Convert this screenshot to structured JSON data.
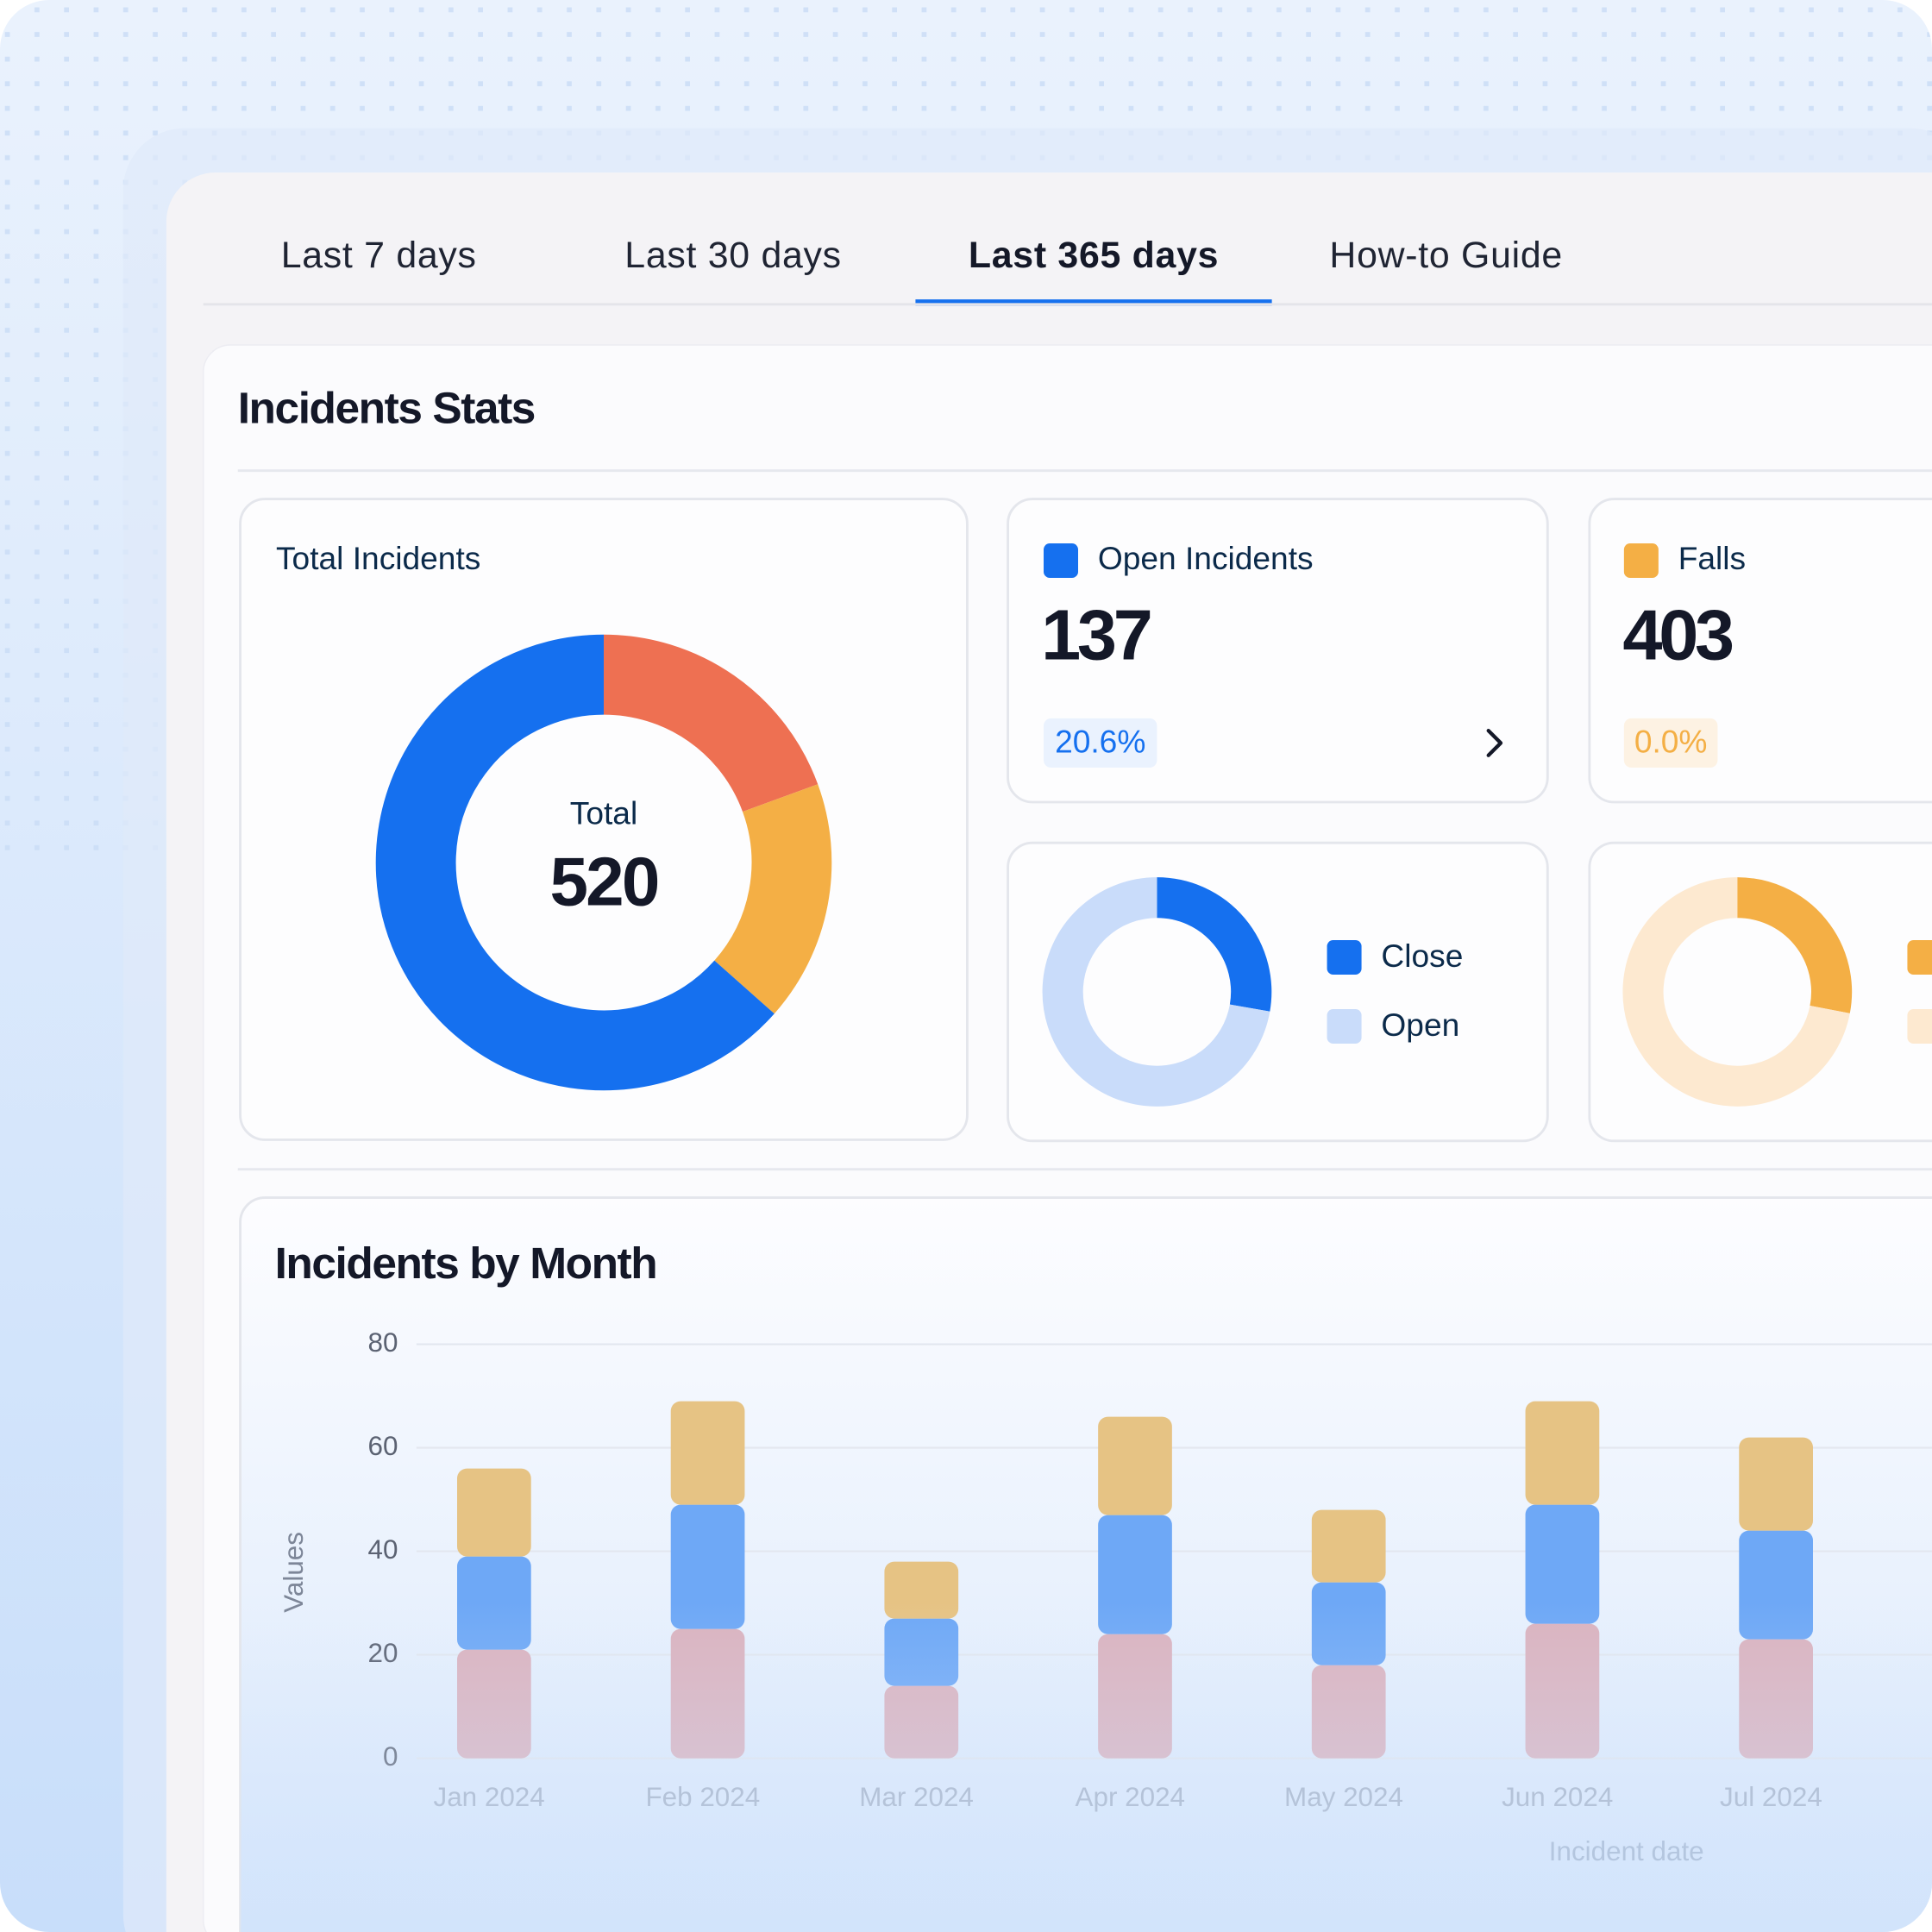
{
  "tabs": {
    "items": [
      "Last 7 days",
      "Last 30 days",
      "Last 365 days",
      "How-to Guide"
    ],
    "active": 2
  },
  "section_title": "Incidents Stats",
  "total_card": {
    "title": "Total Incidents",
    "center_label": "Total",
    "total": 520,
    "chart": {
      "type": "donut",
      "values": [
        101,
        89,
        330
      ],
      "colors": [
        "#ee7052",
        "#f4af45",
        "#1570ef"
      ]
    }
  },
  "open_card": {
    "title": "Open Incidents",
    "value": 137,
    "change": "20.6%",
    "color": "#1570ef",
    "chart": {
      "type": "donut",
      "series": [
        {
          "name": "Close",
          "color": "#1570ef",
          "value": 38
        },
        {
          "name": "Open",
          "color": "#c9dcfa",
          "value": 99
        }
      ]
    }
  },
  "falls_card": {
    "title": "Falls",
    "value": 403,
    "change": "0.0%",
    "color": "#f4af45",
    "chart": {
      "type": "donut",
      "series": [
        {
          "color": "#f4af45",
          "value": 28
        },
        {
          "color": "#fde9d0",
          "value": 72
        }
      ]
    }
  },
  "chart_data": {
    "type": "bar",
    "stacked": true,
    "title": "Incidents by Month",
    "x_label": "Incident date",
    "y_label": "Values",
    "categories": [
      "Jan 2024",
      "Feb 2024",
      "Mar 2024",
      "Apr 2024",
      "May 2024",
      "Jun 2024",
      "Jul 2024"
    ],
    "series": [
      {
        "color": "#dbb3bf",
        "values": [
          21,
          25,
          14,
          24,
          18,
          26,
          23
        ]
      },
      {
        "color": "#6ea8f6",
        "values": [
          18,
          24,
          13,
          23,
          16,
          23,
          21
        ]
      },
      {
        "color": "#e6c384",
        "values": [
          17,
          20,
          11,
          19,
          14,
          20,
          18
        ]
      }
    ],
    "ylim": [
      0,
      80
    ],
    "yticks": [
      0,
      20,
      40,
      60,
      80
    ],
    "grid": true
  }
}
